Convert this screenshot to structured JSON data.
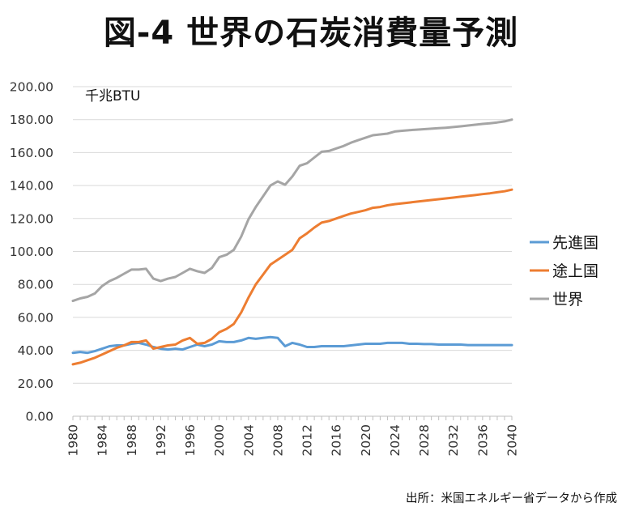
{
  "chart_data": {
    "type": "line",
    "title": "図-4 世界の石炭消費量予測",
    "unit_label": "千兆BTU",
    "source": "出所：米国エネルギー省データから作成",
    "xlabel": "",
    "ylabel": "",
    "ylim": [
      0,
      200
    ],
    "xlim": [
      1980,
      2040
    ],
    "ytick_labels": [
      "0.00",
      "20.00",
      "40.00",
      "60.00",
      "80.00",
      "100.00",
      "120.00",
      "140.00",
      "160.00",
      "180.00",
      "200.00"
    ],
    "xtick_labels": [
      "1980",
      "1984",
      "1988",
      "1992",
      "1996",
      "2000",
      "2004",
      "2008",
      "2012",
      "2016",
      "2020",
      "2024",
      "2028",
      "2032",
      "2036",
      "2040"
    ],
    "grid": "horizontal",
    "legend_position": "right",
    "x": [
      1980,
      1981,
      1982,
      1983,
      1984,
      1985,
      1986,
      1987,
      1988,
      1989,
      1990,
      1991,
      1992,
      1993,
      1994,
      1995,
      1996,
      1997,
      1998,
      1999,
      2000,
      2001,
      2002,
      2003,
      2004,
      2005,
      2006,
      2007,
      2008,
      2009,
      2010,
      2011,
      2012,
      2013,
      2014,
      2015,
      2016,
      2017,
      2018,
      2019,
      2020,
      2021,
      2022,
      2023,
      2024,
      2025,
      2026,
      2027,
      2028,
      2029,
      2030,
      2031,
      2032,
      2033,
      2034,
      2035,
      2036,
      2037,
      2038,
      2039,
      2040
    ],
    "series": [
      {
        "name": "先進国",
        "color": "#5b9bd5",
        "values": [
          38.5,
          39.0,
          38.5,
          39.5,
          41.0,
          42.5,
          43.0,
          43.0,
          44.0,
          44.5,
          43.5,
          42.0,
          41.0,
          40.5,
          41.0,
          40.5,
          42.0,
          43.5,
          42.5,
          43.5,
          45.5,
          45.0,
          45.0,
          46.0,
          47.5,
          47.0,
          47.5,
          48.0,
          47.5,
          42.5,
          44.5,
          43.5,
          42.0,
          42.0,
          42.5,
          42.5,
          42.5,
          42.5,
          43.0,
          43.5,
          44.0,
          44.0,
          44.0,
          44.5,
          44.5,
          44.5,
          44.0,
          44.0,
          43.8,
          43.8,
          43.5,
          43.5,
          43.5,
          43.5,
          43.2,
          43.2,
          43.2,
          43.2,
          43.2,
          43.2,
          43.2
        ]
      },
      {
        "name": "途上国",
        "color": "#ed7d31",
        "values": [
          31.5,
          32.5,
          34.0,
          35.5,
          37.5,
          39.5,
          41.5,
          43.0,
          45.0,
          45.0,
          46.0,
          41.0,
          42.0,
          43.0,
          43.5,
          46.0,
          47.5,
          44.0,
          44.5,
          47.0,
          51.0,
          53.0,
          56.0,
          63.0,
          72.0,
          80.0,
          86.0,
          92.0,
          95.0,
          98.0,
          101.0,
          108.0,
          111.0,
          114.5,
          117.5,
          118.5,
          120.0,
          121.5,
          123.0,
          124.0,
          125.0,
          126.5,
          127.0,
          128.0,
          128.7,
          129.2,
          129.7,
          130.2,
          130.7,
          131.2,
          131.7,
          132.2,
          132.7,
          133.2,
          133.7,
          134.2,
          134.8,
          135.3,
          135.9,
          136.5,
          137.5
        ]
      },
      {
        "name": "世界",
        "color": "#a5a5a5",
        "values": [
          70.0,
          71.5,
          72.5,
          74.5,
          79.0,
          82.0,
          84.0,
          86.5,
          89.0,
          89.0,
          89.5,
          83.5,
          82.0,
          83.5,
          84.5,
          87.0,
          89.5,
          88.0,
          87.0,
          90.0,
          96.5,
          98.0,
          101.0,
          109.0,
          119.5,
          127.0,
          133.5,
          140.0,
          142.5,
          140.5,
          145.5,
          152.0,
          153.5,
          157.0,
          160.5,
          161.0,
          162.5,
          164.0,
          166.0,
          167.5,
          169.0,
          170.5,
          171.0,
          171.5,
          172.8,
          173.2,
          173.6,
          173.9,
          174.2,
          174.5,
          174.8,
          175.1,
          175.5,
          175.9,
          176.4,
          176.9,
          177.4,
          177.8,
          178.3,
          178.9,
          180.0
        ]
      }
    ]
  }
}
